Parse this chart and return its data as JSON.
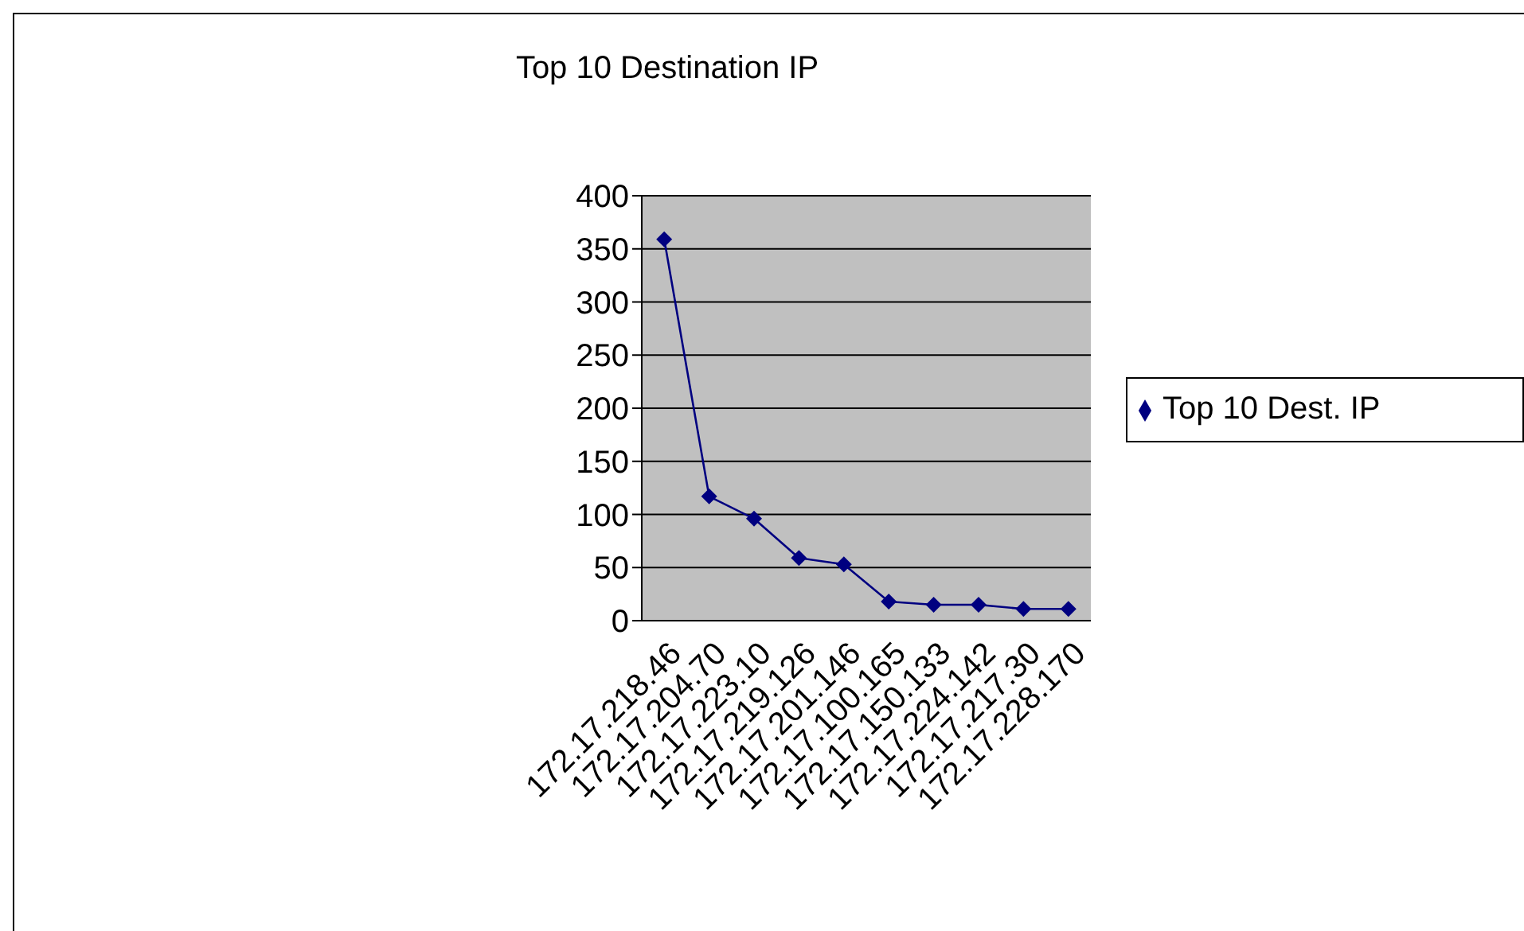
{
  "chart_data": {
    "type": "line",
    "title": "Top 10 Destination IP",
    "categories": [
      "172.17.218.46",
      "172.17.204.70",
      "172.17.223.10",
      "172.17.219.126",
      "172.17.201.146",
      "172.17.100.165",
      "172.17.150.133",
      "172.17.224.142",
      "172.17.217.30",
      "172.17.228.170"
    ],
    "series": [
      {
        "name": "Top 10 Dest. IP",
        "color": "#000080",
        "values": [
          359,
          117,
          96,
          59,
          53,
          18,
          15,
          15,
          11,
          11
        ]
      }
    ],
    "ylim": [
      0,
      400
    ],
    "yticks": [
      0,
      50,
      100,
      150,
      200,
      250,
      300,
      350,
      400
    ],
    "grid": "y",
    "legend": "right",
    "marker": "diamond",
    "line_style": "solid"
  }
}
